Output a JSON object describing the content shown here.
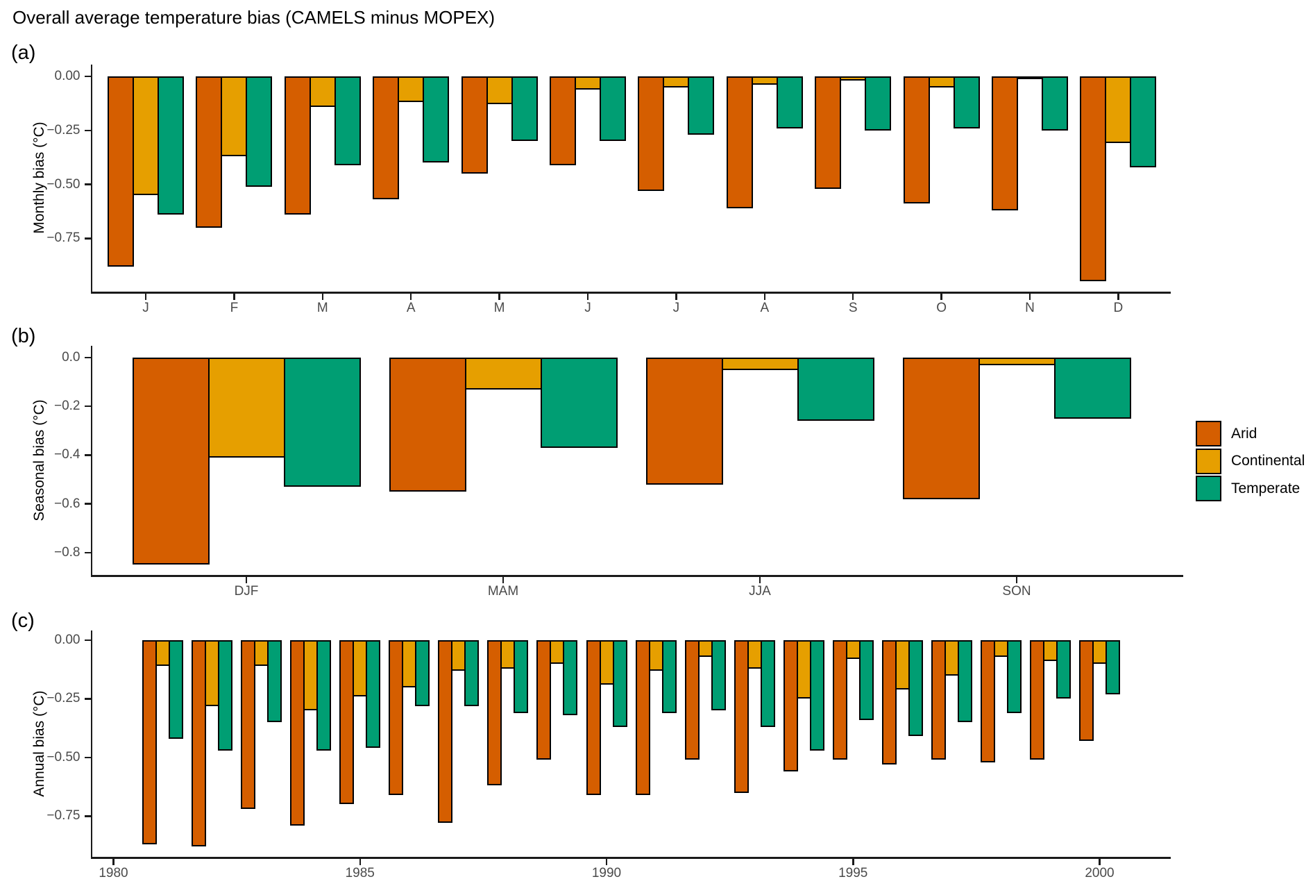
{
  "title": "Overall average temperature bias (CAMELS minus MOPEX)",
  "legend": {
    "position": "right-middle",
    "items": [
      {
        "label": "Arid",
        "color": "#D55E00"
      },
      {
        "label": "Continental",
        "color": "#E69F00"
      },
      {
        "label": "Temperate",
        "color": "#009E73"
      }
    ]
  },
  "chart_data": [
    {
      "panel": "(a)",
      "type": "bar",
      "title": "",
      "xlabel": "",
      "ylabel": "Monthly bias (°C)",
      "grid": false,
      "ylim": [
        -1.0,
        0.05
      ],
      "categories": [
        "J",
        "F",
        "M",
        "A",
        "M",
        "J",
        "J",
        "A",
        "S",
        "O",
        "N",
        "D"
      ],
      "yticks": [
        {
          "v": 0,
          "label": "0.00"
        },
        {
          "v": -0.25,
          "label": "−0.25"
        },
        {
          "v": -0.5,
          "label": "−0.50"
        },
        {
          "v": -0.75,
          "label": "−0.75"
        }
      ],
      "series": [
        {
          "name": "Arid",
          "color": "#D55E00",
          "values": [
            -0.88,
            -0.7,
            -0.64,
            -0.57,
            -0.45,
            -0.41,
            -0.53,
            -0.61,
            -0.52,
            -0.59,
            -0.62,
            -0.95
          ]
        },
        {
          "name": "Continental",
          "color": "#E69F00",
          "values": [
            -0.55,
            -0.37,
            -0.14,
            -0.12,
            -0.13,
            -0.06,
            -0.05,
            -0.04,
            -0.02,
            -0.05,
            -0.01,
            -0.31
          ]
        },
        {
          "name": "Temperate",
          "color": "#009E73",
          "values": [
            -0.64,
            -0.51,
            -0.41,
            -0.4,
            -0.3,
            -0.3,
            -0.27,
            -0.24,
            -0.25,
            -0.24,
            -0.25,
            -0.42
          ]
        }
      ]
    },
    {
      "panel": "(b)",
      "type": "bar",
      "title": "",
      "xlabel": "",
      "ylabel": "Seasonal bias (°C)",
      "grid": false,
      "ylim": [
        -0.89,
        0.05
      ],
      "categories": [
        "DJF",
        "MAM",
        "JJA",
        "SON"
      ],
      "yticks": [
        {
          "v": 0,
          "label": "0.0"
        },
        {
          "v": -0.2,
          "label": "−0.2"
        },
        {
          "v": -0.4,
          "label": "−0.4"
        },
        {
          "v": -0.6,
          "label": "−0.6"
        },
        {
          "v": -0.8,
          "label": "−0.8"
        }
      ],
      "series": [
        {
          "name": "Arid",
          "color": "#D55E00",
          "values": [
            -0.85,
            -0.55,
            -0.52,
            -0.58
          ]
        },
        {
          "name": "Continental",
          "color": "#E69F00",
          "values": [
            -0.41,
            -0.13,
            -0.05,
            -0.03
          ]
        },
        {
          "name": "Temperate",
          "color": "#009E73",
          "values": [
            -0.53,
            -0.37,
            -0.26,
            -0.25
          ]
        }
      ]
    },
    {
      "panel": "(c)",
      "type": "bar",
      "title": "",
      "xlabel": "",
      "ylabel": "Annual bias (°C)",
      "grid": false,
      "ylim": [
        -0.92,
        0.04
      ],
      "xrange": [
        1979.6,
        2001.4
      ],
      "categories": [
        1981,
        1982,
        1983,
        1984,
        1985,
        1986,
        1987,
        1988,
        1989,
        1990,
        1991,
        1992,
        1993,
        1994,
        1995,
        1996,
        1997,
        1998,
        1999,
        2000
      ],
      "xticks": [
        {
          "v": 1980,
          "label": "1980"
        },
        {
          "v": 1985,
          "label": "1985"
        },
        {
          "v": 1990,
          "label": "1990"
        },
        {
          "v": 1995,
          "label": "1995"
        },
        {
          "v": 2000,
          "label": "2000"
        }
      ],
      "yticks": [
        {
          "v": 0,
          "label": "0.00"
        },
        {
          "v": -0.25,
          "label": "−0.25"
        },
        {
          "v": -0.5,
          "label": "−0.50"
        },
        {
          "v": -0.75,
          "label": "−0.75"
        }
      ],
      "series": [
        {
          "name": "Arid",
          "color": "#D55E00",
          "values": [
            -0.87,
            -0.88,
            -0.72,
            -0.79,
            -0.7,
            -0.66,
            -0.78,
            -0.62,
            -0.51,
            -0.66,
            -0.66,
            -0.51,
            -0.65,
            -0.56,
            -0.51,
            -0.53,
            -0.51,
            -0.52,
            -0.51,
            -0.43
          ]
        },
        {
          "name": "Continental",
          "color": "#E69F00",
          "values": [
            -0.11,
            -0.28,
            -0.11,
            -0.3,
            -0.24,
            -0.2,
            -0.13,
            -0.12,
            -0.1,
            -0.19,
            -0.13,
            -0.07,
            -0.12,
            -0.25,
            -0.08,
            -0.21,
            -0.15,
            -0.07,
            -0.09,
            -0.1
          ]
        },
        {
          "name": "Temperate",
          "color": "#009E73",
          "values": [
            -0.42,
            -0.47,
            -0.35,
            -0.47,
            -0.46,
            -0.28,
            -0.28,
            -0.31,
            -0.32,
            -0.37,
            -0.31,
            -0.3,
            -0.37,
            -0.47,
            -0.34,
            -0.41,
            -0.35,
            -0.31,
            -0.25,
            -0.23
          ]
        }
      ]
    }
  ]
}
